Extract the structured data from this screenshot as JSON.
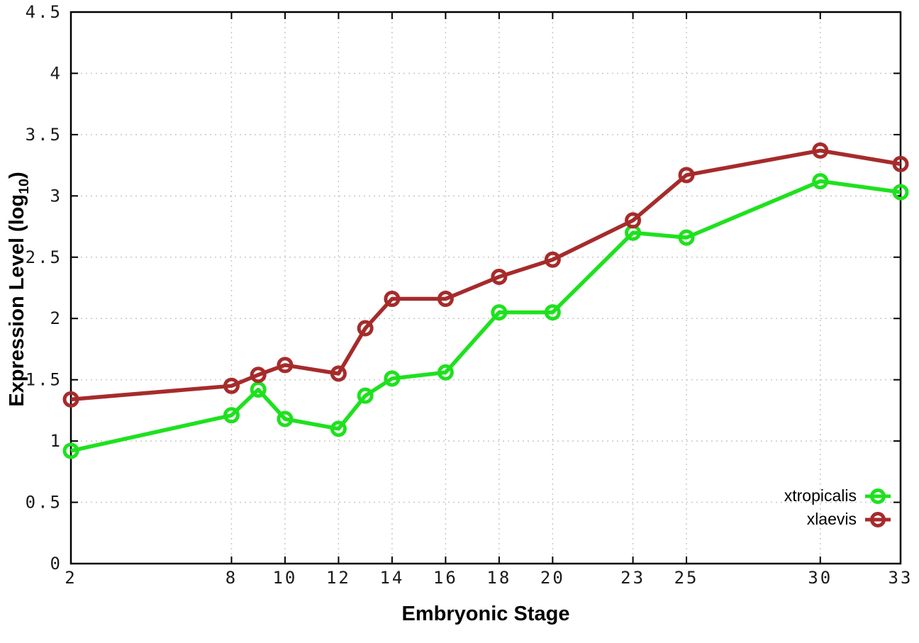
{
  "chart_data": {
    "type": "line",
    "title": "",
    "xlabel": "Embryonic Stage",
    "ylabel": "Expression Level (log10)",
    "ylabel_parts": {
      "main": "Expression Level (log",
      "sub": "10",
      "close": ")"
    },
    "xlim": [
      2,
      33
    ],
    "ylim": [
      0,
      4.5
    ],
    "grid": true,
    "grid_color": "#c8c8c8",
    "frame_color": "#000000",
    "x_ticks": [
      {
        "value": 2,
        "label": "2"
      },
      {
        "value": 8,
        "label": "8"
      },
      {
        "value": 10,
        "label": "10"
      },
      {
        "value": 12,
        "label": "12"
      },
      {
        "value": 14,
        "label": "14"
      },
      {
        "value": 16,
        "label": "16"
      },
      {
        "value": 18,
        "label": "18"
      },
      {
        "value": 20,
        "label": "20"
      },
      {
        "value": 23,
        "label": "23"
      },
      {
        "value": 25,
        "label": "25"
      },
      {
        "value": 30,
        "label": "30"
      },
      {
        "value": 33,
        "label": "33"
      }
    ],
    "y_ticks": [
      {
        "value": 0,
        "label": "0"
      },
      {
        "value": 0.5,
        "label": "0.5"
      },
      {
        "value": 1,
        "label": "1"
      },
      {
        "value": 1.5,
        "label": "1.5"
      },
      {
        "value": 2,
        "label": "2"
      },
      {
        "value": 2.5,
        "label": "2.5"
      },
      {
        "value": 3,
        "label": "3"
      },
      {
        "value": 3.5,
        "label": "3.5"
      },
      {
        "value": 4,
        "label": "4"
      },
      {
        "value": 4.5,
        "label": "4.5"
      }
    ],
    "x": [
      2,
      8,
      9,
      10,
      12,
      13,
      14,
      16,
      18,
      20,
      23,
      25,
      30,
      33
    ],
    "series": [
      {
        "name": "xtropicalis",
        "color": "#1ee11e",
        "values": [
          0.92,
          1.21,
          1.42,
          1.18,
          1.1,
          1.37,
          1.51,
          1.56,
          2.05,
          2.05,
          2.7,
          2.66,
          3.12,
          3.03
        ]
      },
      {
        "name": "xlaevis",
        "color": "#a62b2b",
        "values": [
          1.34,
          1.45,
          1.54,
          1.62,
          1.55,
          1.92,
          2.16,
          2.16,
          2.34,
          2.48,
          2.8,
          3.17,
          3.37,
          3.26
        ]
      }
    ],
    "legend": {
      "position": "bottom-right"
    }
  }
}
